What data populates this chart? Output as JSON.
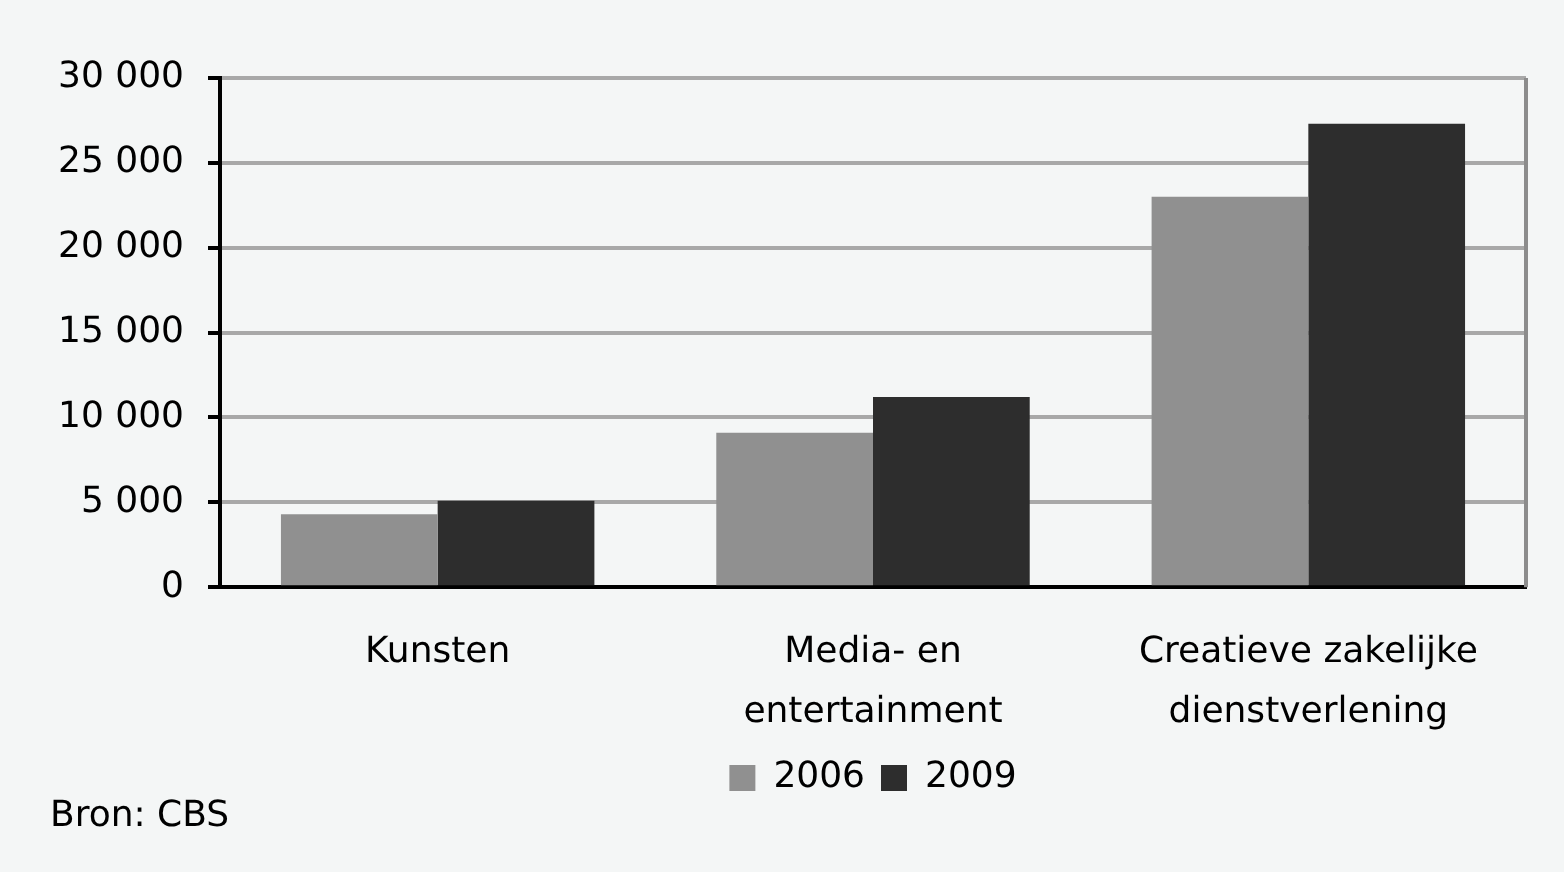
{
  "chart_data": {
    "type": "bar",
    "categories": [
      "Kunsten",
      "Media- en entertainment",
      "Creatieve zakelijke dienstverlening"
    ],
    "series": [
      {
        "name": "2006",
        "color": "#909090",
        "values": [
          4300,
          9100,
          23000
        ]
      },
      {
        "name": "2009",
        "color": "#2d2d2d",
        "values": [
          5100,
          11200,
          27300
        ]
      }
    ],
    "ylim": [
      0,
      30000
    ],
    "yticks": [
      0,
      {
        "value": 5000,
        "label": "5 000"
      },
      {
        "value": 10000,
        "label": "10 000"
      },
      {
        "value": 15000,
        "label": "15 000"
      },
      {
        "value": 20000,
        "label": "20 000"
      },
      {
        "value": 25000,
        "label": "25 000"
      },
      {
        "value": 30000,
        "label": "30 000"
      }
    ],
    "grid": "y",
    "legend": "bottom",
    "annotations": [
      "Bron: CBS"
    ]
  }
}
